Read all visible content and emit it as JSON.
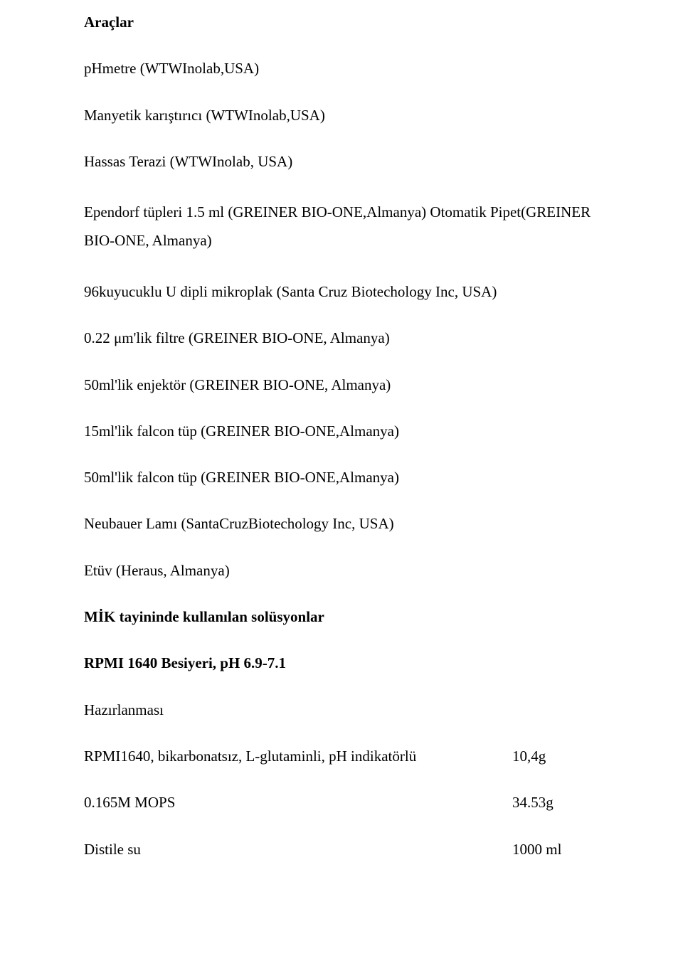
{
  "text_color": "#000000",
  "background_color": "#ffffff",
  "font_family": "Times New Roman",
  "base_fontsize_pt": 16,
  "heading1": "Araçlar",
  "items": {
    "phmetre": "pHmetre (WTWInolab,USA)",
    "karistirici": "Manyetik karıştırıcı (WTWInolab,USA)",
    "terazi": "Hassas Terazi (WTWInolab, USA)",
    "ependorf_pipet": "Ependorf tüpleri 1.5 ml (GREINER BIO-ONE,Almanya) Otomatik Pipet(GREINER BIO-ONE, Almanya)",
    "mikroplak": "96kuyucuklu U dipli mikroplak (Santa Cruz Biotechology Inc, USA)",
    "filtre": "0.22 μm'lik filtre (GREINER BIO-ONE, Almanya)",
    "enjektor": "50ml'lik enjektör (GREINER BIO-ONE, Almanya)",
    "falcon15": "15ml'lik falcon tüp (GREINER BIO-ONE,Almanya)",
    "falcon50": "50ml'lik falcon tüp (GREINER BIO-ONE,Almanya)",
    "neubauer": "Neubauer Lamı (SantaCruzBiotechology Inc, USA)",
    "etuv": "Etüv (Heraus, Almanya)"
  },
  "heading2": "MİK tayininde kullanılan solüsyonlar",
  "heading3": "RPMI 1640 Besiyeri, pH 6.9-7.1",
  "hazirlanmasi": "Hazırlanması",
  "recipe": {
    "rpmi": {
      "label": "RPMI1640, bikarbonatsız, L-glutaminli, pH indikatörlü",
      "amount": "10,4g"
    },
    "mops": {
      "label": "0.165M MOPS",
      "amount": "34.53g"
    },
    "su": {
      "label": "Distile su",
      "amount": "1000 ml"
    }
  }
}
